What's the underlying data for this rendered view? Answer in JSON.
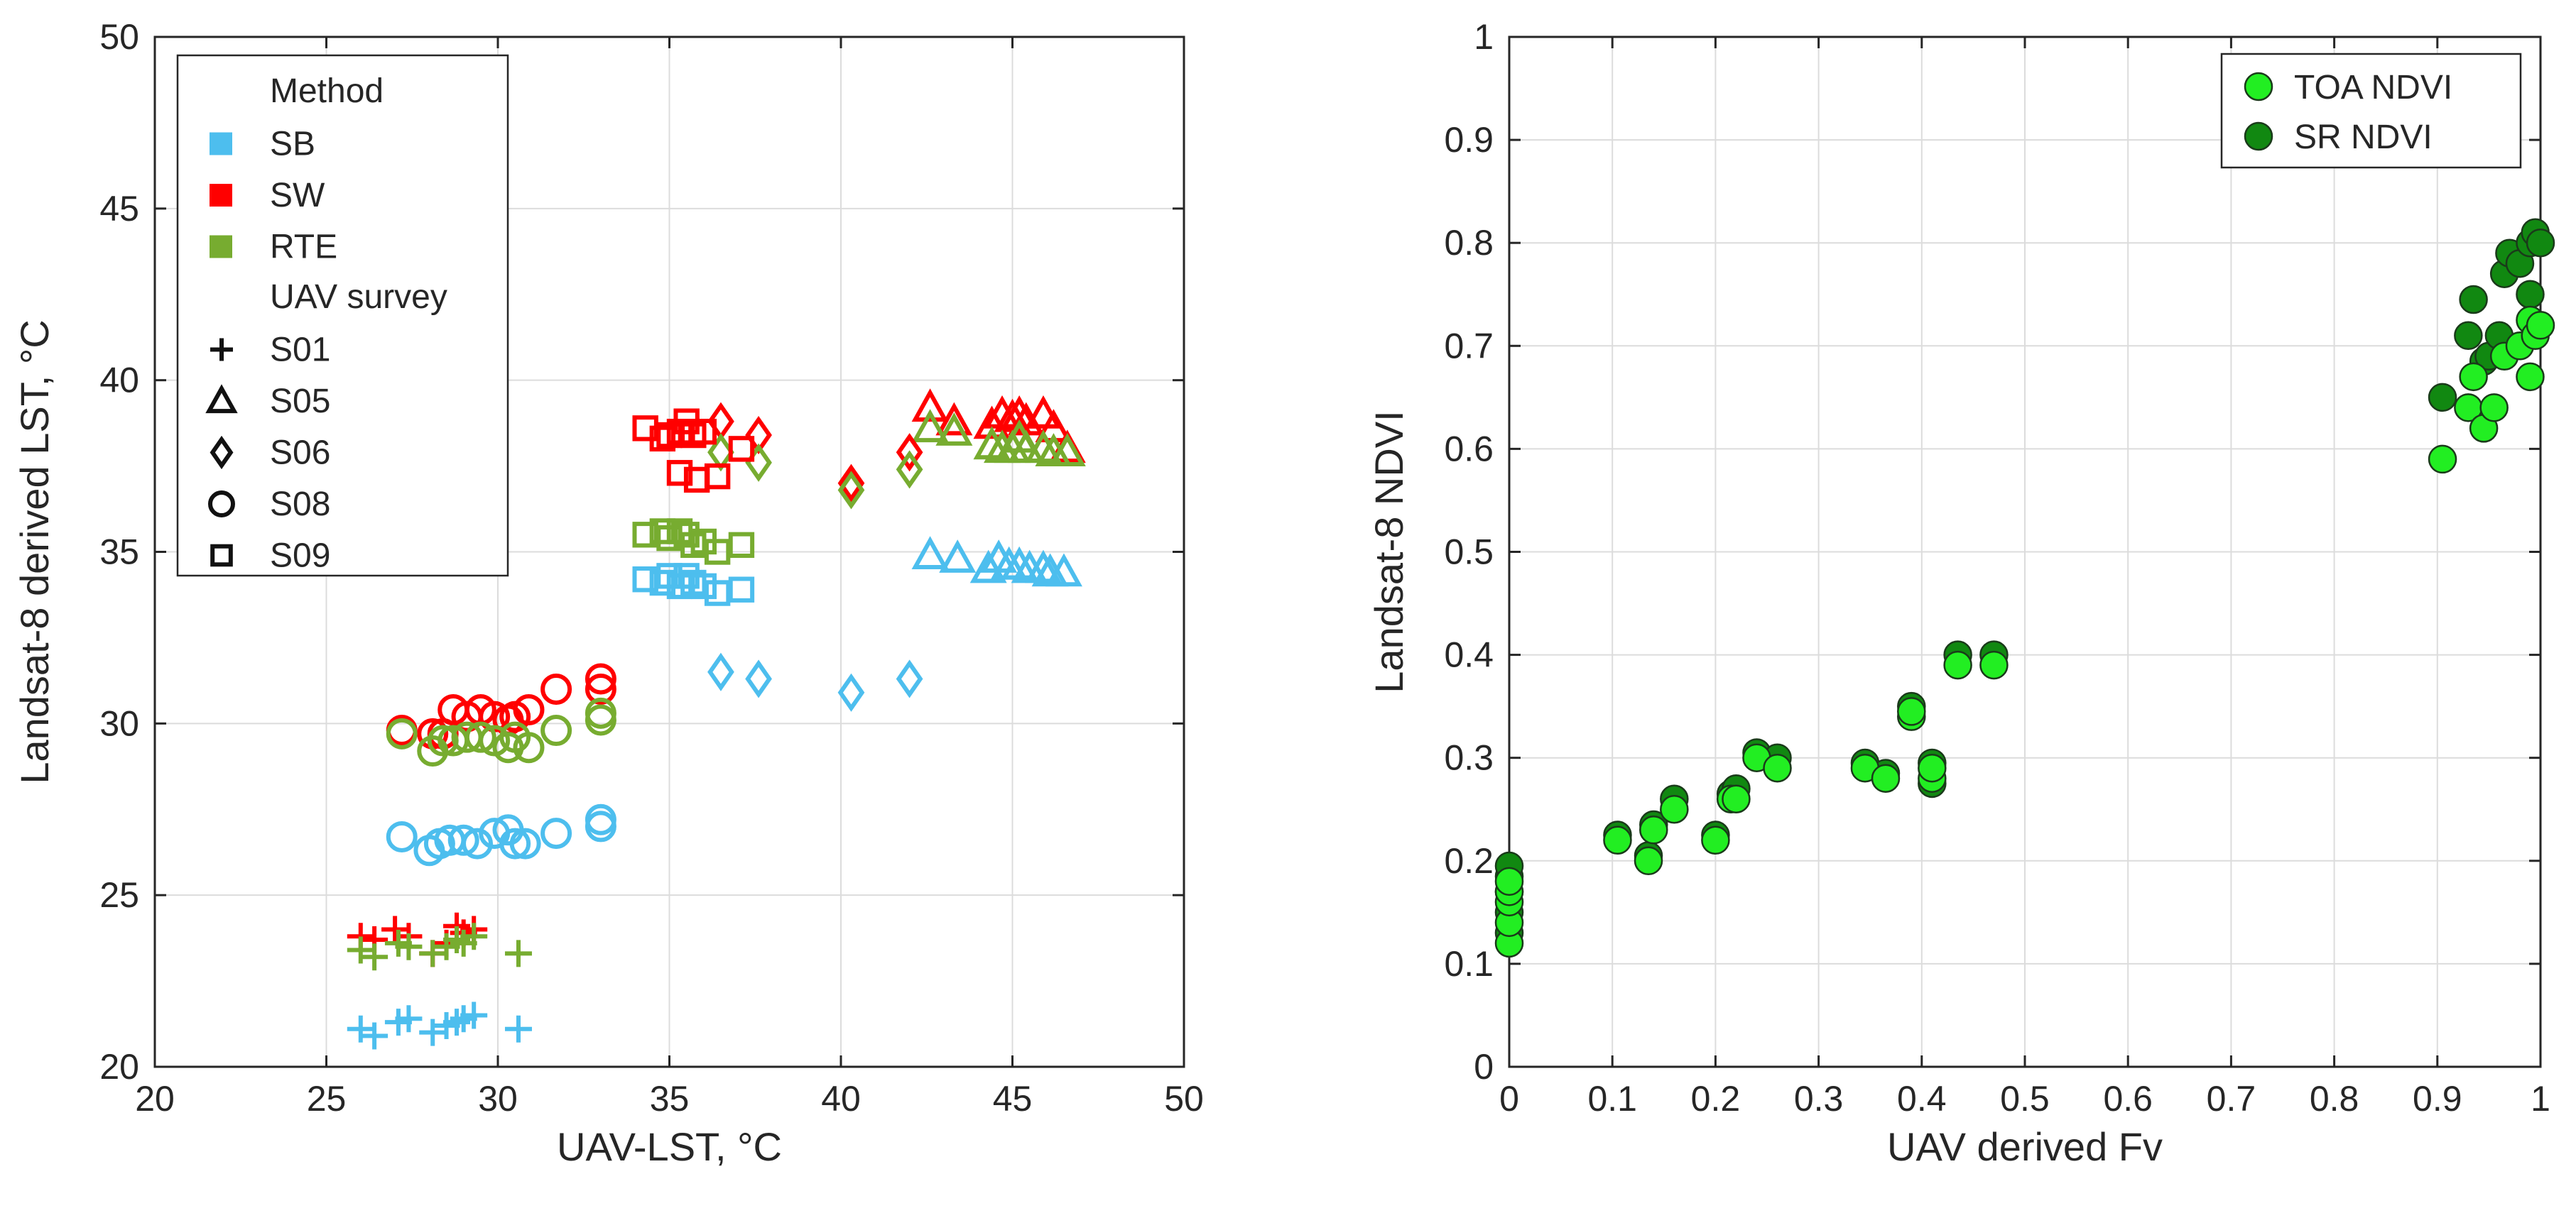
{
  "chart_data": [
    {
      "type": "scatter",
      "xlabel": "UAV-LST, °C",
      "ylabel": "Landsat-8 derived LST, °C",
      "xlim": [
        20,
        50
      ],
      "ylim": [
        20,
        50
      ],
      "xticks": [
        20,
        25,
        30,
        35,
        40,
        45,
        50
      ],
      "yticks": [
        20,
        25,
        30,
        35,
        40,
        45,
        50
      ],
      "grid": true,
      "legend": {
        "position": "top-left",
        "method_title": "Method",
        "survey_title": "UAV survey",
        "methods": [
          {
            "name": "SB",
            "color": "#4DBEEE"
          },
          {
            "name": "SW",
            "color": "#FF0000"
          },
          {
            "name": "RTE",
            "color": "#77AC30"
          }
        ],
        "surveys": [
          {
            "name": "S01",
            "marker": "plus"
          },
          {
            "name": "S05",
            "marker": "triangle"
          },
          {
            "name": "S06",
            "marker": "diamond"
          },
          {
            "name": "S08",
            "marker": "circle"
          },
          {
            "name": "S09",
            "marker": "square"
          }
        ]
      },
      "series": [
        {
          "method": "SB",
          "survey": "S01",
          "x": [
            26.0,
            26.4,
            27.1,
            27.4,
            28.1,
            28.5,
            28.8,
            29.0,
            29.3,
            30.6
          ],
          "y": [
            21.1,
            20.9,
            21.3,
            21.4,
            21.0,
            21.2,
            21.3,
            21.4,
            21.5,
            21.1
          ]
        },
        {
          "method": "SW",
          "survey": "S01",
          "x": [
            26.0,
            26.4,
            27.0,
            27.4,
            28.1,
            28.5,
            28.8,
            29.0,
            29.3
          ],
          "y": [
            23.8,
            23.7,
            24.0,
            23.8,
            23.3,
            23.6,
            24.1,
            23.9,
            24.0
          ]
        },
        {
          "method": "RTE",
          "survey": "S01",
          "x": [
            26.0,
            26.4,
            27.1,
            27.4,
            28.1,
            28.5,
            28.8,
            29.0,
            29.3,
            30.6
          ],
          "y": [
            23.4,
            23.2,
            23.6,
            23.5,
            23.3,
            23.5,
            23.7,
            23.6,
            23.8,
            23.3
          ]
        },
        {
          "method": "SB",
          "survey": "S05",
          "x": [
            42.6,
            43.4,
            44.3,
            44.6,
            44.9,
            45.2,
            45.5,
            45.9,
            46.1,
            46.5
          ],
          "y": [
            34.9,
            34.8,
            34.5,
            34.8,
            34.6,
            34.6,
            34.5,
            34.5,
            34.4,
            34.4
          ]
        },
        {
          "method": "SW",
          "survey": "S05",
          "x": [
            42.6,
            43.3,
            44.4,
            44.7,
            45.0,
            45.2,
            45.4,
            45.9,
            46.2,
            46.6
          ],
          "y": [
            39.2,
            38.8,
            38.7,
            39.0,
            38.9,
            39.0,
            38.8,
            39.0,
            38.6,
            38.0
          ]
        },
        {
          "method": "RTE",
          "survey": "S05",
          "x": [
            42.6,
            43.3,
            44.4,
            44.7,
            45.0,
            45.2,
            45.4,
            45.9,
            46.2,
            46.6
          ],
          "y": [
            38.6,
            38.5,
            38.1,
            38.0,
            38.0,
            38.3,
            38.0,
            38.0,
            37.9,
            37.9
          ]
        },
        {
          "method": "SB",
          "survey": "S06",
          "x": [
            36.5,
            37.6,
            40.3,
            42.0
          ],
          "y": [
            31.5,
            31.3,
            30.9,
            31.3
          ]
        },
        {
          "method": "SW",
          "survey": "S06",
          "x": [
            36.5,
            37.6,
            40.3,
            42.0
          ],
          "y": [
            38.8,
            38.4,
            37.0,
            37.9
          ]
        },
        {
          "method": "RTE",
          "survey": "S06",
          "x": [
            36.5,
            37.6,
            40.3,
            42.0
          ],
          "y": [
            37.9,
            37.6,
            36.8,
            37.4
          ]
        },
        {
          "method": "SB",
          "survey": "S08",
          "x": [
            27.2,
            28.0,
            28.3,
            28.6,
            29.0,
            29.4,
            29.9,
            30.3,
            30.5,
            30.8,
            31.7,
            33.0,
            33.0
          ],
          "y": [
            26.7,
            26.3,
            26.5,
            26.6,
            26.6,
            26.5,
            26.8,
            26.9,
            26.5,
            26.5,
            26.8,
            27.2,
            27.0
          ]
        },
        {
          "method": "SW",
          "survey": "S08",
          "x": [
            27.2,
            28.1,
            28.4,
            28.7,
            29.1,
            29.5,
            29.9,
            30.3,
            30.5,
            30.9,
            31.7,
            33.0,
            33.0
          ],
          "y": [
            29.8,
            29.7,
            29.7,
            30.4,
            30.2,
            30.4,
            30.2,
            30.1,
            30.2,
            30.4,
            31.0,
            31.3,
            31.0
          ]
        },
        {
          "method": "RTE",
          "survey": "S08",
          "x": [
            27.2,
            28.1,
            28.4,
            28.7,
            29.1,
            29.5,
            29.9,
            30.3,
            30.5,
            30.9,
            31.7,
            33.0,
            33.0
          ],
          "y": [
            29.7,
            29.2,
            29.5,
            29.5,
            29.6,
            29.6,
            29.5,
            29.3,
            29.6,
            29.3,
            29.8,
            30.1,
            30.3
          ]
        },
        {
          "method": "SB",
          "survey": "S09",
          "x": [
            34.3,
            34.8,
            35.0,
            35.3,
            35.5,
            35.7,
            36.0,
            36.4,
            37.1
          ],
          "y": [
            34.2,
            34.1,
            34.3,
            34.0,
            34.3,
            34.1,
            34.0,
            33.8,
            33.9
          ]
        },
        {
          "method": "SW",
          "survey": "S09",
          "x": [
            34.3,
            34.8,
            35.0,
            35.3,
            35.5,
            35.7,
            36.0,
            36.4,
            37.1,
            35.3,
            35.8
          ],
          "y": [
            38.6,
            38.3,
            38.4,
            38.5,
            38.8,
            38.4,
            38.5,
            37.2,
            38.0,
            37.3,
            37.1
          ]
        },
        {
          "method": "RTE",
          "survey": "S09",
          "x": [
            34.3,
            34.8,
            35.0,
            35.3,
            35.5,
            35.7,
            36.0,
            36.4,
            37.1
          ],
          "y": [
            35.5,
            35.6,
            35.4,
            35.6,
            35.5,
            35.2,
            35.3,
            35.0,
            35.2
          ]
        }
      ]
    },
    {
      "type": "scatter",
      "xlabel": "UAV derived Fv",
      "ylabel": "Landsat-8 NDVI",
      "xlim": [
        0,
        1
      ],
      "ylim": [
        0,
        1
      ],
      "xticks": [
        0,
        0.1,
        0.2,
        0.3,
        0.4,
        0.5,
        0.6,
        0.7,
        0.8,
        0.9,
        1
      ],
      "yticks": [
        0,
        0.1,
        0.2,
        0.3,
        0.4,
        0.5,
        0.6,
        0.7,
        0.8,
        0.9,
        1
      ],
      "xtick_labels": [
        "0",
        "0.1",
        "0.2",
        "0.3",
        "0.4",
        "0.5",
        "0.6",
        "0.7",
        "0.8",
        "0.9",
        "1"
      ],
      "ytick_labels": [
        "0",
        "0.1",
        "0.2",
        "0.3",
        "0.4",
        "0.5",
        "0.6",
        "0.7",
        "0.8",
        "0.9",
        "1"
      ],
      "grid": true,
      "legend_position": "top-right",
      "series": [
        {
          "name": "TOA NDVI",
          "color": "#22EE22",
          "x": [
            0.0,
            0.0,
            0.0,
            0.0,
            0.0,
            0.105,
            0.135,
            0.14,
            0.16,
            0.2,
            0.215,
            0.22,
            0.24,
            0.26,
            0.345,
            0.365,
            0.39,
            0.39,
            0.41,
            0.41,
            0.435,
            0.47,
            0.905,
            0.93,
            0.935,
            0.945,
            0.955,
            0.965,
            0.98,
            0.99,
            0.99,
            0.995,
            1.0
          ],
          "y": [
            0.12,
            0.14,
            0.16,
            0.17,
            0.18,
            0.22,
            0.2,
            0.23,
            0.25,
            0.22,
            0.26,
            0.26,
            0.3,
            0.29,
            0.29,
            0.28,
            0.34,
            0.345,
            0.28,
            0.29,
            0.39,
            0.39,
            0.59,
            0.64,
            0.67,
            0.62,
            0.64,
            0.69,
            0.7,
            0.67,
            0.725,
            0.71,
            0.72
          ]
        },
        {
          "name": "SR NDVI",
          "color": "#118811",
          "x": [
            0.0,
            0.0,
            0.0,
            0.0,
            0.0,
            0.105,
            0.135,
            0.14,
            0.16,
            0.2,
            0.215,
            0.22,
            0.24,
            0.26,
            0.345,
            0.365,
            0.39,
            0.41,
            0.41,
            0.435,
            0.47,
            0.905,
            0.93,
            0.935,
            0.945,
            0.95,
            0.96,
            0.965,
            0.97,
            0.98,
            0.99,
            0.99,
            0.995,
            1.0
          ],
          "y": [
            0.13,
            0.15,
            0.17,
            0.185,
            0.195,
            0.225,
            0.205,
            0.235,
            0.26,
            0.225,
            0.265,
            0.27,
            0.305,
            0.3,
            0.295,
            0.285,
            0.35,
            0.275,
            0.295,
            0.4,
            0.4,
            0.65,
            0.71,
            0.745,
            0.685,
            0.69,
            0.71,
            0.77,
            0.79,
            0.78,
            0.75,
            0.8,
            0.81,
            0.8
          ]
        }
      ]
    }
  ]
}
